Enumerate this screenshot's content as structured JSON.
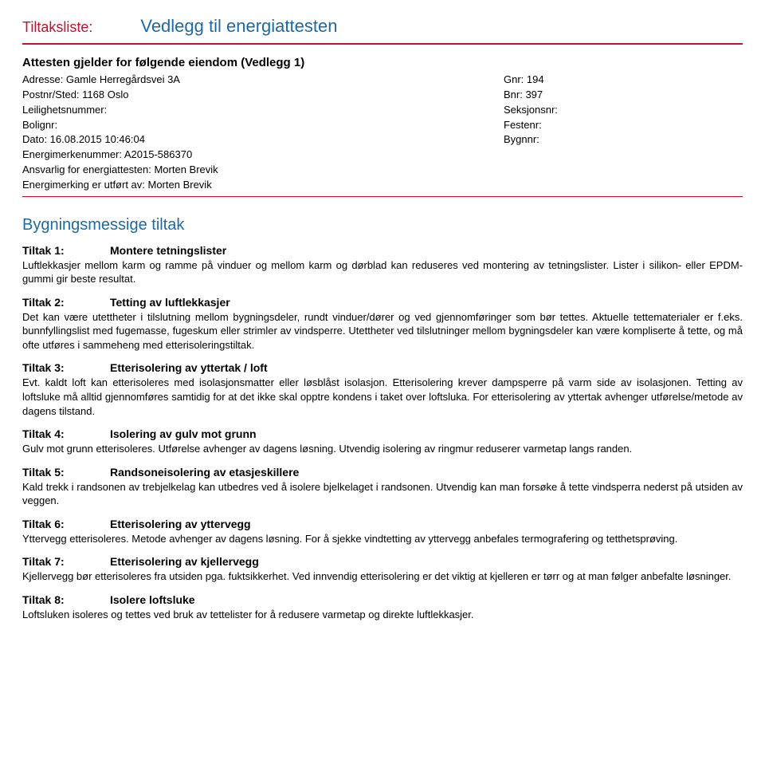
{
  "header": {
    "label": "Tiltaksliste:",
    "title": "Vedlegg til energiattesten"
  },
  "info": {
    "heading": "Attesten gjelder for følgende eiendom (Vedlegg 1)",
    "left": [
      "Adresse: Gamle Herregårdsvei 3A",
      "Postnr/Sted: 1168 Oslo",
      "Leilighetsnummer:",
      "Bolignr:",
      "Dato: 16.08.2015 10:46:04",
      "Energimerkenummer: A2015-586370",
      "Ansvarlig for energiattesten: Morten Brevik",
      "Energimerking er utført av: Morten Brevik"
    ],
    "right": [
      "Gnr: 194",
      "Bnr: 397",
      "Seksjonsnr:",
      "Festenr:",
      "Bygnnr:"
    ]
  },
  "section": {
    "title": "Bygningsmessige tiltak"
  },
  "tiltak": [
    {
      "num": "Tiltak 1:",
      "title": "Montere tetningslister",
      "body": "Luftlekkasjer mellom karm og ramme på vinduer og  mellom karm og dørblad kan reduseres ved montering av tetningslister. Lister i silikon- eller EPDM-gummi gir beste resultat."
    },
    {
      "num": "Tiltak 2:",
      "title": "Tetting av luftlekkasjer",
      "body": "Det kan være utettheter i tilslutning mellom bygningsdeler, rundt vinduer/dører og ved gjennomføringer som bør tettes. Aktuelle tettematerialer er f.eks. bunnfyllingslist med fugemasse, fugeskum eller strimler av vindsperre. Utettheter ved tilslutninger mellom bygningsdeler kan være kompliserte å tette, og må ofte utføres i sammeheng med etterisoleringstiltak."
    },
    {
      "num": "Tiltak 3:",
      "title": "Etterisolering av yttertak / loft",
      "body": "Evt. kaldt loft kan etterisoleres med isolasjonsmatter eller løsblåst isolasjon. Etterisolering krever dampsperre på varm side av isolasjonen. Tetting av loftsluke må alltid gjennomføres samtidig for at det ikke skal opptre kondens i taket over loftsluka. For etterisolering av yttertak avhenger utførelse/metode av dagens tilstand."
    },
    {
      "num": "Tiltak 4:",
      "title": "Isolering av gulv mot grunn",
      "body": "Gulv mot grunn etterisoleres. Utførelse avhenger av dagens løsning. Utvendig isolering av ringmur reduserer varmetap langs randen."
    },
    {
      "num": "Tiltak 5:",
      "title": "Randsoneisolering av etasjeskillere",
      "body": "Kald trekk i randsonen av trebjelkelag kan utbedres ved å isolere bjelkelaget i randsonen. Utvendig kan man forsøke å tette vindsperra nederst på utsiden av veggen."
    },
    {
      "num": "Tiltak 6:",
      "title": "Etterisolering av yttervegg",
      "body": "Yttervegg etterisoleres. Metode avhenger av dagens løsning. For å sjekke vindtetting av yttervegg anbefales termografering og tetthetsprøving."
    },
    {
      "num": "Tiltak 7:",
      "title": "Etterisolering av kjellervegg",
      "body": "Kjellervegg bør etterisoleres fra utsiden pga. fuktsikkerhet. Ved innvendig etterisolering er det viktig at kjelleren er tørr og at man følger anbefalte løsninger."
    },
    {
      "num": "Tiltak 8:",
      "title": "Isolere loftsluke",
      "body": "Loftsluken isoleres og tettes ved bruk av tettelister for å redusere varmetap og direkte luftlekkasjer."
    }
  ]
}
